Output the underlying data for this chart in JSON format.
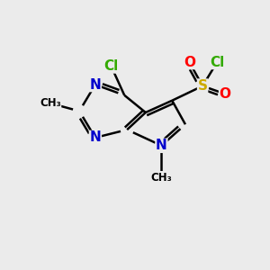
{
  "bg_color": "#ebebeb",
  "atom_colors": {
    "C": "#000000",
    "N": "#0000cc",
    "Cl": "#33aa00",
    "S": "#ccaa00",
    "O": "#ff0000"
  },
  "bond_color": "#000000",
  "bond_width": 1.8,
  "dbo": 0.12,
  "figsize": [
    3.0,
    3.0
  ],
  "dpi": 100
}
